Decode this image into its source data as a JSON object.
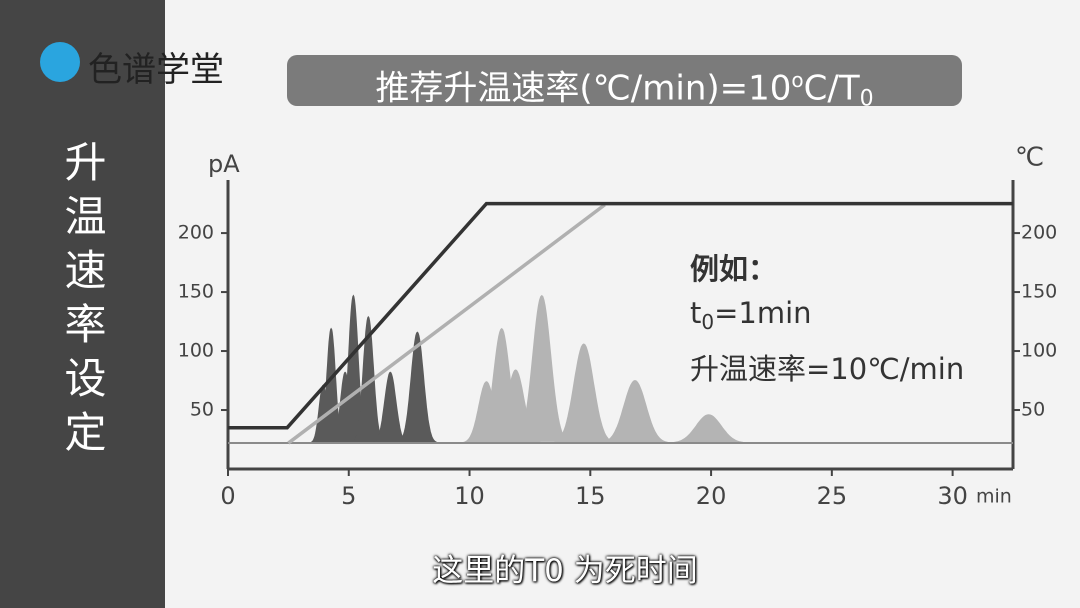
{
  "logo": "色谱学堂",
  "sidebar": "升温速率设定",
  "title": {
    "main": "推荐升温速率(℃/min)=10",
    "sup": "o",
    "mid": "C/T",
    "sub": "0"
  },
  "caption": "这里的T0 为死时间",
  "chart_data": {
    "type": "line",
    "y_label": "pA",
    "y2_label": "℃",
    "x_label": "min",
    "xlim": [
      0,
      32.5
    ],
    "xticks": [
      0,
      5,
      10,
      15,
      20,
      25,
      30
    ],
    "ylim": [
      0,
      245
    ],
    "yticks": [
      50,
      100,
      150,
      200
    ],
    "y2lim": [
      0,
      245
    ],
    "y2ticks": [
      50,
      100,
      150,
      200
    ],
    "series": [
      {
        "color": "#8a8a8a",
        "x": [
          0,
          32.5
        ],
        "values": [
          22,
          22
        ]
      },
      {
        "color": "#b0b0b0",
        "x": [
          2.5,
          15.6
        ],
        "values": [
          22,
          224
        ],
        "axis": "y2"
      },
      {
        "color": "#333333",
        "x": [
          0,
          2.45,
          10.7,
          32.5
        ],
        "values": [
          35,
          35,
          225,
          225
        ],
        "axis": "y2"
      }
    ],
    "peaks": [
      {
        "color": "#5a5a5a",
        "x": [
          3.94,
          4.27,
          4.85,
          5.19,
          5.81,
          6.72,
          7.84
        ],
        "values": [
          71,
          119,
          82,
          147,
          129,
          82,
          116
        ]
      },
      {
        "color": "#b4b4b4",
        "x": [
          10.7,
          11.33,
          11.91,
          12.99,
          14.73,
          16.85,
          19.9
        ],
        "values": [
          74,
          119,
          84,
          147,
          106,
          75,
          46
        ]
      }
    ],
    "annotation": {
      "heading": "例如：",
      "t": "t",
      "t_sub": "0",
      "t_rest": "=1min",
      "rate": "升温速率=10℃/min"
    }
  }
}
